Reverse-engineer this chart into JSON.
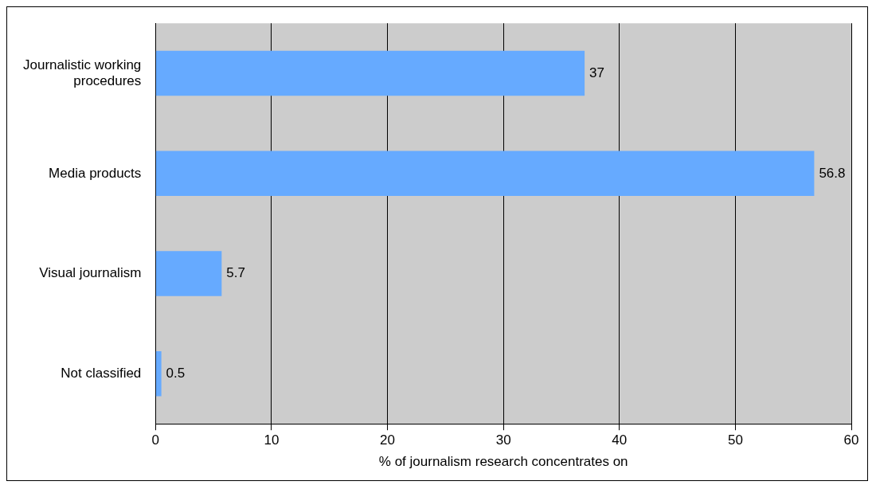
{
  "chart_data": {
    "type": "bar",
    "orientation": "horizontal",
    "categories": [
      "Journalistic working procedures",
      "Media products",
      "Visual journalism",
      "Not classified"
    ],
    "values": [
      37,
      56.8,
      5.7,
      0.5
    ],
    "color": "#66aaff",
    "data_labels": true,
    "xlabel": "% of journalism research concentrates on",
    "xlim": [
      0,
      60
    ],
    "xticks": [
      0,
      10,
      20,
      30,
      40,
      50,
      60
    ],
    "grid": "x",
    "legend": false
  }
}
